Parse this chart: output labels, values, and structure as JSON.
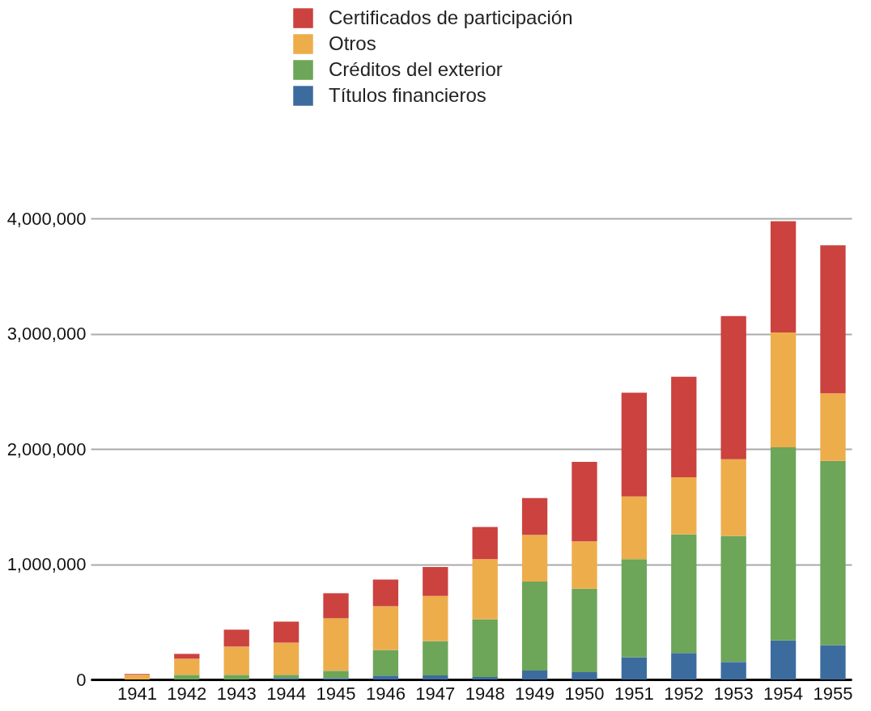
{
  "chart_data": {
    "type": "bar",
    "stacked": true,
    "categories": [
      "1941",
      "1942",
      "1943",
      "1944",
      "1945",
      "1946",
      "1947",
      "1948",
      "1949",
      "1950",
      "1951",
      "1952",
      "1953",
      "1954",
      "1955"
    ],
    "series": [
      {
        "name": "Títulos financieros",
        "color": "#3c6c9e",
        "values": [
          0,
          0,
          0,
          12000,
          12000,
          33000,
          35000,
          21000,
          77000,
          63000,
          193000,
          229000,
          152000,
          339000,
          298000
        ]
      },
      {
        "name": "Créditos del exterior",
        "color": "#6da559",
        "values": [
          0,
          40000,
          40000,
          28000,
          63000,
          224000,
          299000,
          501000,
          773000,
          724000,
          851000,
          1030000,
          1094000,
          1675000,
          1598000
        ]
      },
      {
        "name": "Otros",
        "color": "#edad4b",
        "values": [
          40000,
          140000,
          245000,
          280000,
          456000,
          378000,
          390000,
          522000,
          404000,
          411000,
          543000,
          496000,
          664000,
          997000,
          587000
        ]
      },
      {
        "name": "Certificados de participación",
        "color": "#cb423f",
        "values": [
          7000,
          42000,
          147000,
          182000,
          217000,
          231000,
          251000,
          278000,
          320000,
          690000,
          901000,
          871000,
          1242000,
          964000,
          1284000
        ]
      }
    ],
    "ylim": [
      0,
      4000000
    ],
    "yticks": [
      0,
      {
        "value": 1000000,
        "label": "1,000,000"
      },
      {
        "value": 2000000,
        "label": "2,000,000"
      },
      {
        "value": 3000000,
        "label": "3,000,000"
      },
      {
        "value": 4000000,
        "label": "4,000,000"
      }
    ],
    "grid": "y",
    "legend": "top"
  }
}
